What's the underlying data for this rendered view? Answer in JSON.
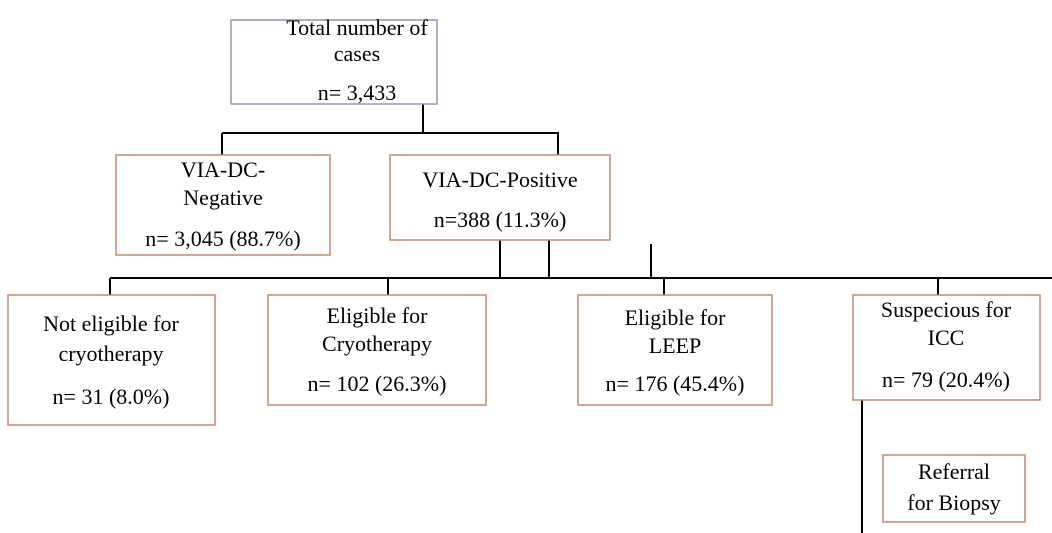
{
  "nodes": [
    {
      "lines": [
        "Total number of",
        "cases",
        "n= 3,433"
      ]
    },
    {
      "lines": [
        "VIA-DC-",
        "Negative",
        "n= 3,045 (88.7%)"
      ]
    },
    {
      "lines": [
        "VIA-DC-Positive",
        "n=388 (11.3%)"
      ]
    },
    {
      "lines": [
        "Not eligible for",
        "cryotherapy",
        "n= 31 (8.0%)"
      ]
    },
    {
      "lines": [
        "Eligible for",
        "Cryotherapy",
        "n= 102 (26.3%)"
      ]
    },
    {
      "lines": [
        "Eligible for",
        "LEEP",
        "n= 176 (45.4%)"
      ]
    },
    {
      "lines": [
        "Suspecious for",
        "ICC",
        "n= 79 (20.4%)"
      ]
    },
    {
      "lines": [
        "Referral",
        "for Biopsy"
      ]
    }
  ]
}
